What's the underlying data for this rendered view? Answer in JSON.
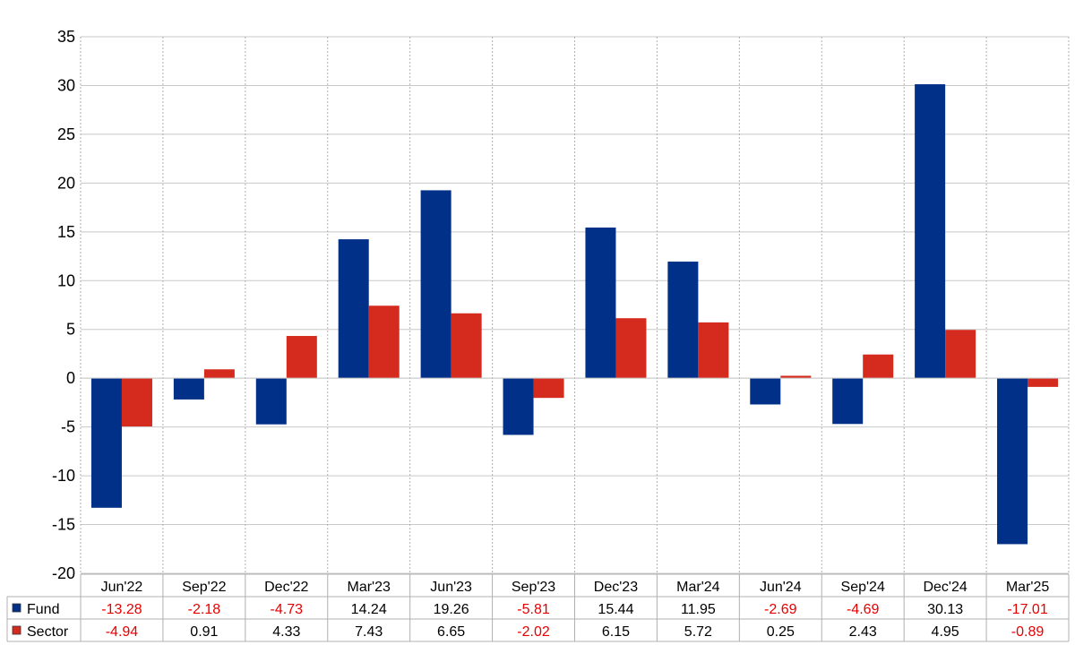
{
  "chart_data": {
    "type": "bar",
    "categories": [
      "Jun'22",
      "Sep'22",
      "Dec'22",
      "Mar'23",
      "Jun'23",
      "Sep'23",
      "Dec'23",
      "Mar'24",
      "Jun'24",
      "Sep'24",
      "Dec'24",
      "Mar'25"
    ],
    "series": [
      {
        "name": "Fund",
        "color": "#003087",
        "values": [
          -13.28,
          -2.18,
          -4.73,
          14.24,
          19.26,
          -5.81,
          15.44,
          11.95,
          -2.69,
          -4.69,
          30.13,
          -17.01
        ]
      },
      {
        "name": "Sector",
        "color": "#d52b1e",
        "values": [
          -4.94,
          0.91,
          4.33,
          7.43,
          6.65,
          -2.02,
          6.15,
          5.72,
          0.25,
          2.43,
          4.95,
          -0.89
        ]
      }
    ],
    "ylim": [
      -20,
      35
    ],
    "yticks": [
      "35",
      "30",
      "25",
      "20",
      "15",
      "10",
      "5",
      "0",
      "-5",
      "-10",
      "-15",
      "-20"
    ],
    "table": {
      "rows": [
        {
          "label": "Fund",
          "color": "#003087",
          "cells": [
            "-13.28",
            "-2.18",
            "-4.73",
            "14.24",
            "19.26",
            "-5.81",
            "15.44",
            "11.95",
            "-2.69",
            "-4.69",
            "30.13",
            "-17.01"
          ]
        },
        {
          "label": "Sector",
          "color": "#d52b1e",
          "cells": [
            "-4.94",
            "0.91",
            "4.33",
            "7.43",
            "6.65",
            "-2.02",
            "6.15",
            "5.72",
            "0.25",
            "2.43",
            "4.95",
            "-0.89"
          ]
        }
      ]
    },
    "negative_value_color": "#e60000",
    "positive_value_color": "#000000",
    "grid": true,
    "legend": "table-left"
  }
}
